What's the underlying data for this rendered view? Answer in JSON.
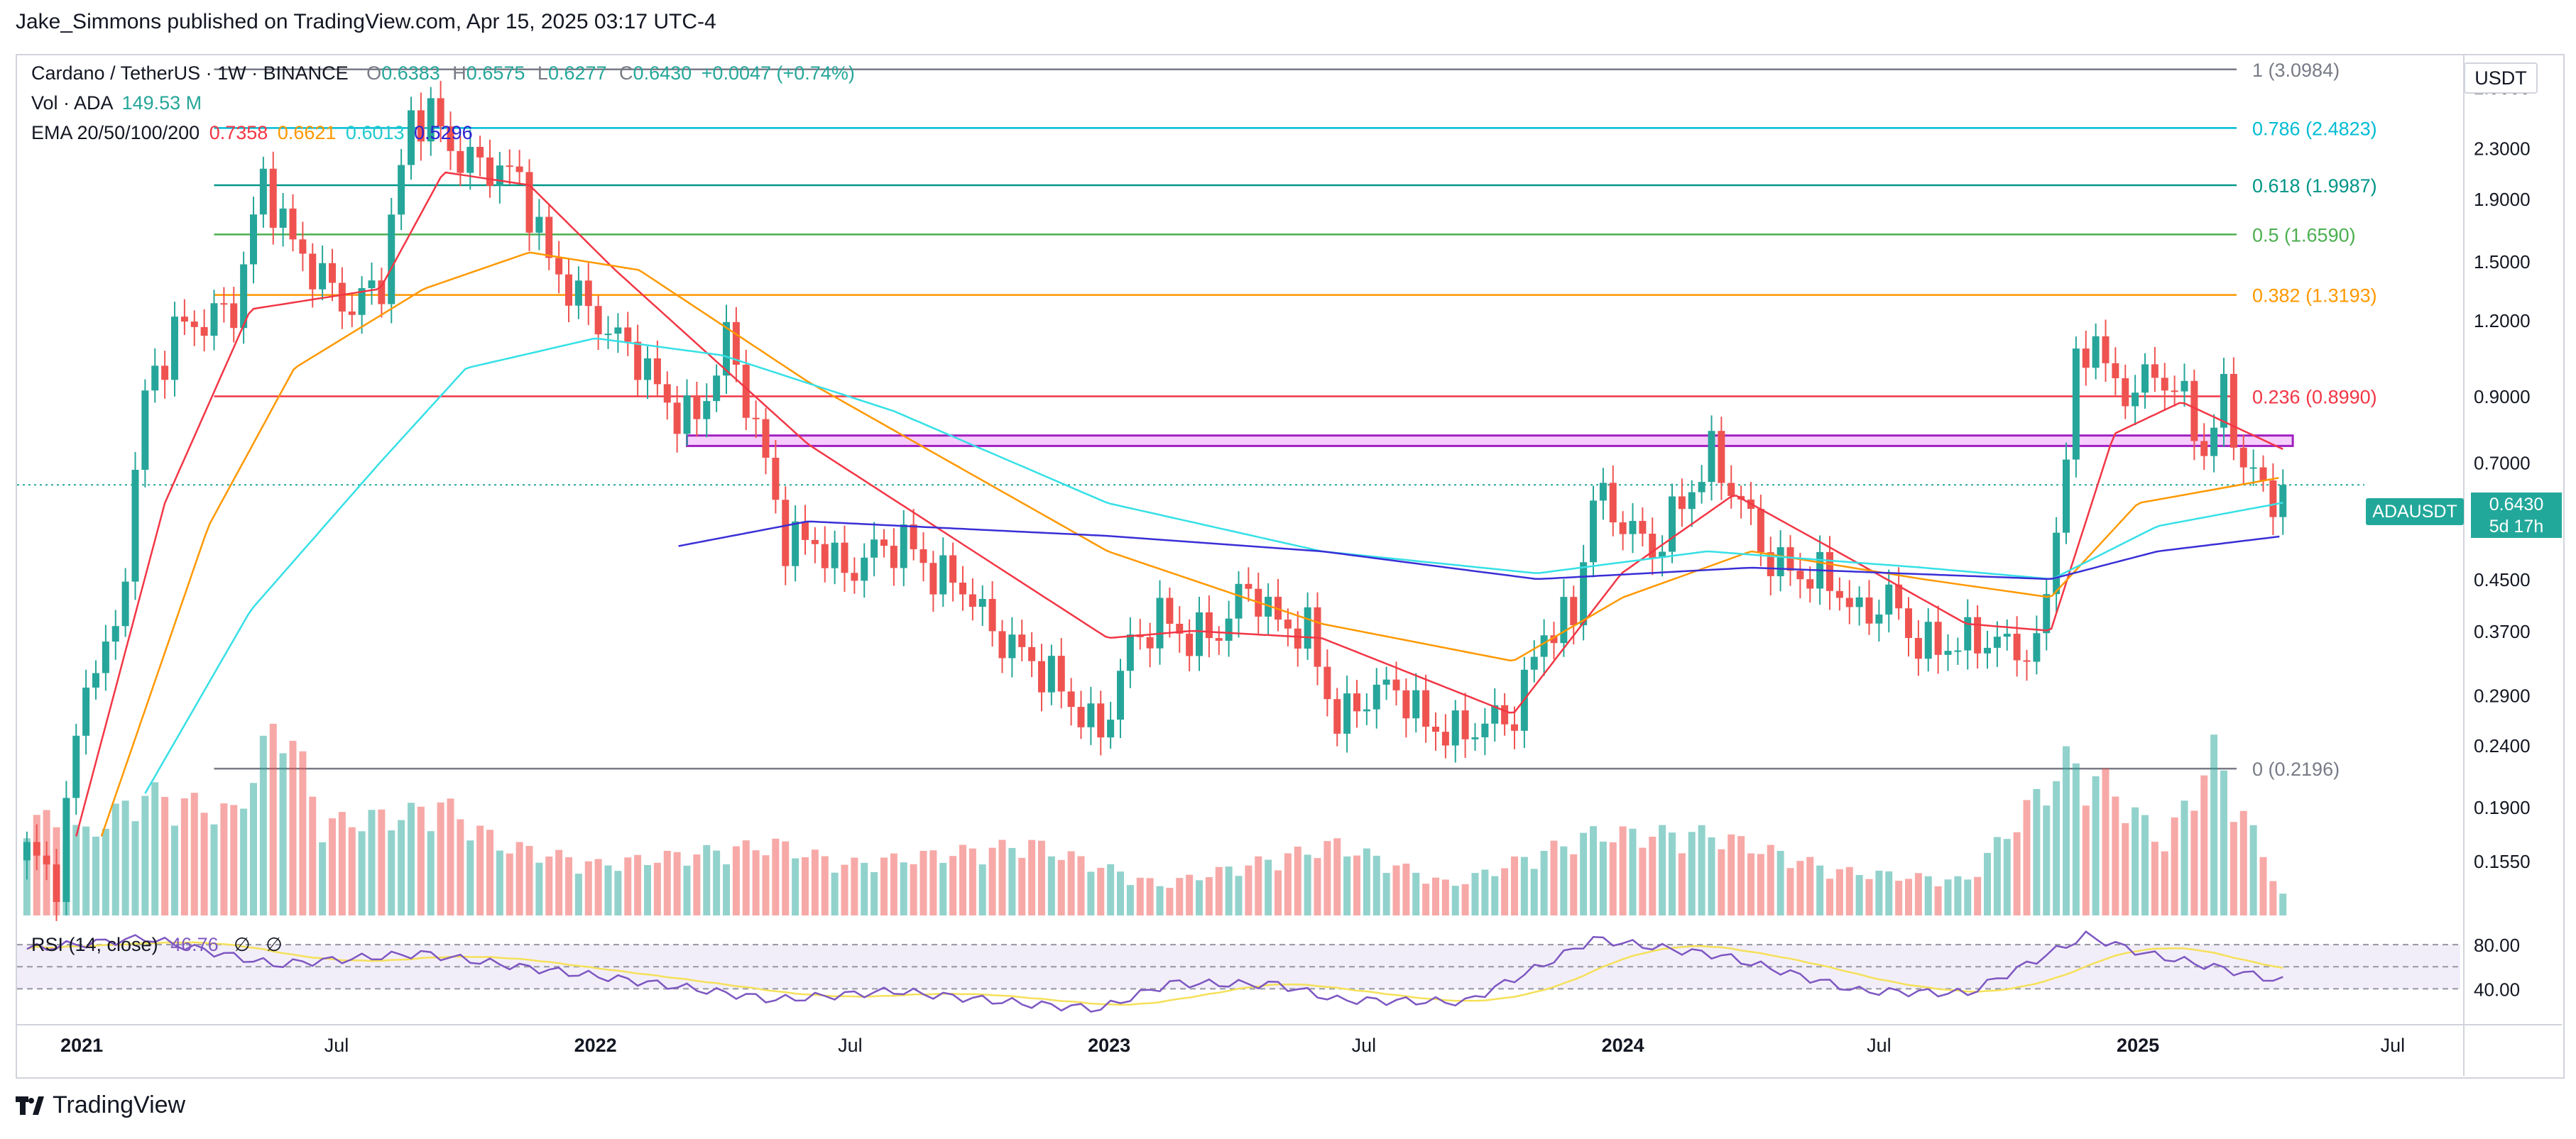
{
  "header": {
    "publish_line": "Jake_Simmons published on TradingView.com, Apr 15, 2025 03:17 UTC-4"
  },
  "legend": {
    "symbol": "Cardano / TetherUS · 1W · BINANCE",
    "open_label": "O",
    "open": "0.6383",
    "high_label": "H",
    "high": "0.6575",
    "low_label": "L",
    "low": "0.6277",
    "close_label": "C",
    "close": "0.6430",
    "change": "+0.0047 (+0.74%)",
    "vol_label": "Vol · ADA",
    "vol": "149.53 M",
    "ema_label": "EMA 20/50/100/200",
    "ema20": "0.7358",
    "ema50": "0.6621",
    "ema100": "0.6013",
    "ema200": "0.5296",
    "rsi_label": "RSI (14, close)",
    "rsi_value": "46.76",
    "rsi_na1": "∅",
    "rsi_na2": "∅"
  },
  "price_axis": {
    "unit": "USDT",
    "current_symbol": "ADAUSDT",
    "current_price": "0.6430",
    "countdown": "5d 17h"
  },
  "colors": {
    "up": "#26a69a",
    "down": "#ef5350",
    "ema20": "#f23645",
    "ema50": "#ff9800",
    "ema100": "#36e0e6",
    "ema200": "#3a2fd6",
    "rsi": "#7e57c2",
    "rsi_ma": "#f5e05a",
    "zone": "#e040fb"
  },
  "footer": {
    "brand": "TradingView",
    "logo_icon": "tradingview-logo-icon"
  },
  "chart_data": {
    "type": "candlestick",
    "title": "Cardano / TetherUS · 1W · BINANCE",
    "y_scale": "log",
    "ylim": [
      0.126,
      3.25
    ],
    "y_ticks": [
      "2.9000",
      "2.3000",
      "1.9000",
      "1.5000",
      "1.2000",
      "0.9000",
      "0.7000",
      "0.5500",
      "0.4500",
      "0.3700",
      "0.2900",
      "0.2400",
      "0.1900",
      "0.1550"
    ],
    "x_ticks": [
      "2021",
      "Jul",
      "2022",
      "Jul",
      "2023",
      "Jul",
      "2024",
      "Jul",
      "2025",
      "Jul"
    ],
    "x_range": [
      "2020-11",
      "2025-08"
    ],
    "rsi_ticks": [
      "80.00",
      "40.00"
    ],
    "fib_levels": [
      {
        "ratio": "1",
        "price": 3.0984,
        "label": "1 (3.0984)",
        "color": "#787b86"
      },
      {
        "ratio": "0.786",
        "price": 2.4823,
        "label": "0.786 (2.4823)",
        "color": "#00bcd4"
      },
      {
        "ratio": "0.618",
        "price": 1.9987,
        "label": "0.618 (1.9987)",
        "color": "#009688"
      },
      {
        "ratio": "0.5",
        "price": 1.659,
        "label": "0.5 (1.6590)",
        "color": "#4caf50"
      },
      {
        "ratio": "0.382",
        "price": 1.3193,
        "label": "0.382 (1.3193)",
        "color": "#ff9800"
      },
      {
        "ratio": "0.236",
        "price": 0.899,
        "label": "0.236 (0.8990)",
        "color": "#f23645"
      },
      {
        "ratio": "0",
        "price": 0.2196,
        "label": "0 (0.2196)",
        "color": "#787b86"
      }
    ],
    "resistance_zone": {
      "low": 0.745,
      "high": 0.775,
      "start": "2022-03",
      "end": "2025-04"
    },
    "current_price_line": 0.643,
    "close_anchors": [
      [
        "2020-11-23",
        0.16
      ],
      [
        "2020-12-14",
        0.145
      ],
      [
        "2021-01-04",
        0.31
      ],
      [
        "2021-01-25",
        0.36
      ],
      [
        "2021-02-15",
        0.9
      ],
      [
        "2021-03-08",
        1.15
      ],
      [
        "2021-03-29",
        1.2
      ],
      [
        "2021-04-19",
        1.25
      ],
      [
        "2021-05-10",
        2.05
      ],
      [
        "2021-05-31",
        1.6
      ],
      [
        "2021-06-21",
        1.4
      ],
      [
        "2021-07-12",
        1.25
      ],
      [
        "2021-08-02",
        1.4
      ],
      [
        "2021-08-23",
        2.6
      ],
      [
        "2021-09-06",
        2.6
      ],
      [
        "2021-09-27",
        2.2
      ],
      [
        "2021-10-18",
        2.15
      ],
      [
        "2021-11-08",
        2.05
      ],
      [
        "2021-11-29",
        1.5
      ],
      [
        "2021-12-20",
        1.3
      ],
      [
        "2022-01-10",
        1.15
      ],
      [
        "2022-01-31",
        1.05
      ],
      [
        "2022-02-21",
        0.87
      ],
      [
        "2022-03-14",
        0.82
      ],
      [
        "2022-04-04",
        1.12
      ],
      [
        "2022-04-25",
        0.8
      ],
      [
        "2022-05-16",
        0.52
      ],
      [
        "2022-06-06",
        0.52
      ],
      [
        "2022-06-27",
        0.46
      ],
      [
        "2022-07-18",
        0.5
      ],
      [
        "2022-08-08",
        0.52
      ],
      [
        "2022-08-29",
        0.46
      ],
      [
        "2022-09-19",
        0.44
      ],
      [
        "2022-10-10",
        0.37
      ],
      [
        "2022-10-31",
        0.34
      ],
      [
        "2022-11-21",
        0.31
      ],
      [
        "2022-12-12",
        0.27
      ],
      [
        "2022-12-26",
        0.25
      ],
      [
        "2023-01-16",
        0.35
      ],
      [
        "2023-02-06",
        0.39
      ],
      [
        "2023-02-27",
        0.36
      ],
      [
        "2023-03-20",
        0.37
      ],
      [
        "2023-04-10",
        0.44
      ],
      [
        "2023-05-01",
        0.38
      ],
      [
        "2023-05-22",
        0.37
      ],
      [
        "2023-06-12",
        0.26
      ],
      [
        "2023-07-03",
        0.29
      ],
      [
        "2023-07-24",
        0.3
      ],
      [
        "2023-08-14",
        0.26
      ],
      [
        "2023-09-04",
        0.25
      ],
      [
        "2023-09-25",
        0.26
      ],
      [
        "2023-10-16",
        0.27
      ],
      [
        "2023-11-06",
        0.37
      ],
      [
        "2023-11-27",
        0.39
      ],
      [
        "2023-12-11",
        0.62
      ],
      [
        "2024-01-01",
        0.56
      ],
      [
        "2024-01-22",
        0.5
      ],
      [
        "2024-02-12",
        0.6
      ],
      [
        "2024-03-04",
        0.72
      ],
      [
        "2024-03-25",
        0.6
      ],
      [
        "2024-04-15",
        0.48
      ],
      [
        "2024-05-06",
        0.46
      ],
      [
        "2024-05-27",
        0.45
      ],
      [
        "2024-06-17",
        0.39
      ],
      [
        "2024-07-08",
        0.42
      ],
      [
        "2024-07-29",
        0.35
      ],
      [
        "2024-08-19",
        0.35
      ],
      [
        "2024-09-09",
        0.36
      ],
      [
        "2024-09-30",
        0.35
      ],
      [
        "2024-10-21",
        0.34
      ],
      [
        "2024-11-04",
        0.55
      ],
      [
        "2024-11-18",
        0.98
      ],
      [
        "2024-12-02",
        1.15
      ],
      [
        "2024-12-16",
        0.9
      ],
      [
        "2025-01-06",
        0.96
      ],
      [
        "2025-01-27",
        0.95
      ],
      [
        "2025-02-17",
        0.73
      ],
      [
        "2025-03-03",
        0.9
      ],
      [
        "2025-03-17",
        0.7
      ],
      [
        "2025-04-07",
        0.6
      ],
      [
        "2025-04-14",
        0.643
      ]
    ],
    "ema_anchors": {
      "ema20": [
        [
          "2020-12-28",
          0.17
        ],
        [
          "2021-03-01",
          0.6
        ],
        [
          "2021-05-01",
          1.25
        ],
        [
          "2021-08-01",
          1.35
        ],
        [
          "2021-09-15",
          2.1
        ],
        [
          "2021-11-15",
          2.0
        ],
        [
          "2022-01-15",
          1.45
        ],
        [
          "2022-06-01",
          0.75
        ],
        [
          "2022-12-31",
          0.36
        ],
        [
          "2023-03-01",
          0.37
        ],
        [
          "2023-06-01",
          0.36
        ],
        [
          "2023-10-15",
          0.27
        ],
        [
          "2023-12-31",
          0.46
        ],
        [
          "2024-03-20",
          0.62
        ],
        [
          "2024-06-01",
          0.5
        ],
        [
          "2024-09-01",
          0.38
        ],
        [
          "2024-10-31",
          0.37
        ],
        [
          "2024-12-15",
          0.78
        ],
        [
          "2025-02-01",
          0.88
        ],
        [
          "2025-04-14",
          0.736
        ]
      ],
      "ema50": [
        [
          "2021-01-15",
          0.17
        ],
        [
          "2021-04-01",
          0.55
        ],
        [
          "2021-06-01",
          1.0
        ],
        [
          "2021-09-01",
          1.35
        ],
        [
          "2021-11-15",
          1.55
        ],
        [
          "2022-02-01",
          1.45
        ],
        [
          "2022-06-01",
          0.95
        ],
        [
          "2022-12-31",
          0.5
        ],
        [
          "2023-06-01",
          0.38
        ],
        [
          "2023-10-15",
          0.33
        ],
        [
          "2024-01-01",
          0.42
        ],
        [
          "2024-04-01",
          0.5
        ],
        [
          "2024-08-01",
          0.45
        ],
        [
          "2024-10-31",
          0.42
        ],
        [
          "2025-01-01",
          0.6
        ],
        [
          "2025-04-14",
          0.662
        ]
      ],
      "ema100": [
        [
          "2021-02-15",
          0.2
        ],
        [
          "2021-05-01",
          0.4
        ],
        [
          "2021-08-01",
          0.7
        ],
        [
          "2021-10-01",
          1.0
        ],
        [
          "2022-01-01",
          1.12
        ],
        [
          "2022-04-01",
          1.05
        ],
        [
          "2022-08-01",
          0.85
        ],
        [
          "2022-12-31",
          0.6
        ],
        [
          "2023-06-01",
          0.5
        ],
        [
          "2023-11-01",
          0.46
        ],
        [
          "2024-03-01",
          0.5
        ],
        [
          "2024-08-01",
          0.47
        ],
        [
          "2024-11-01",
          0.45
        ],
        [
          "2025-01-15",
          0.55
        ],
        [
          "2025-04-14",
          0.601
        ]
      ],
      "ema200": [
        [
          "2022-03-01",
          0.51
        ],
        [
          "2022-06-01",
          0.56
        ],
        [
          "2022-12-31",
          0.53
        ],
        [
          "2023-06-01",
          0.5
        ],
        [
          "2023-11-01",
          0.45
        ],
        [
          "2024-04-01",
          0.47
        ],
        [
          "2024-10-31",
          0.45
        ],
        [
          "2025-01-15",
          0.5
        ],
        [
          "2025-04-14",
          0.5296
        ]
      ]
    },
    "volume_anchors": [
      [
        "2020-11-23",
        0.5
      ],
      [
        "2021-01-04",
        0.4
      ],
      [
        "2021-02-15",
        0.6
      ],
      [
        "2021-04-19",
        0.5
      ],
      [
        "2021-05-24",
        1.0
      ],
      [
        "2021-06-21",
        0.45
      ],
      [
        "2021-08-23",
        0.5
      ],
      [
        "2021-09-13",
        0.55
      ],
      [
        "2021-10-25",
        0.35
      ],
      [
        "2022-01-03",
        0.25
      ],
      [
        "2022-05-09",
        0.35
      ],
      [
        "2022-06-27",
        0.25
      ],
      [
        "2022-11-07",
        0.35
      ],
      [
        "2023-02-06",
        0.15
      ],
      [
        "2023-06-12",
        0.35
      ],
      [
        "2023-09-01",
        0.15
      ],
      [
        "2023-12-11",
        0.4
      ],
      [
        "2024-03-04",
        0.4
      ],
      [
        "2024-06-01",
        0.22
      ],
      [
        "2024-09-01",
        0.17
      ],
      [
        "2024-11-11",
        0.75
      ],
      [
        "2024-12-09",
        0.65
      ],
      [
        "2025-01-20",
        0.35
      ],
      [
        "2025-02-24",
        0.8
      ],
      [
        "2025-04-14",
        0.1
      ]
    ],
    "rsi_anchors": [
      [
        "2020-11-23",
        76
      ],
      [
        "2021-02-15",
        86
      ],
      [
        "2021-05-17",
        62
      ],
      [
        "2021-08-30",
        72
      ],
      [
        "2021-11-08",
        60
      ],
      [
        "2022-01-24",
        48
      ],
      [
        "2022-05-09",
        30
      ],
      [
        "2022-08-01",
        38
      ],
      [
        "2022-11-07",
        26
      ],
      [
        "2022-12-26",
        22
      ],
      [
        "2023-02-13",
        45
      ],
      [
        "2023-05-01",
        44
      ],
      [
        "2023-06-12",
        30
      ],
      [
        "2023-09-11",
        28
      ],
      [
        "2023-11-06",
        62
      ],
      [
        "2023-12-11",
        85
      ],
      [
        "2024-03-11",
        70
      ],
      [
        "2024-06-17",
        38
      ],
      [
        "2024-09-02",
        36
      ],
      [
        "2024-11-25",
        88
      ],
      [
        "2025-01-06",
        72
      ],
      [
        "2025-03-03",
        58
      ],
      [
        "2025-04-14",
        46.76
      ]
    ]
  }
}
